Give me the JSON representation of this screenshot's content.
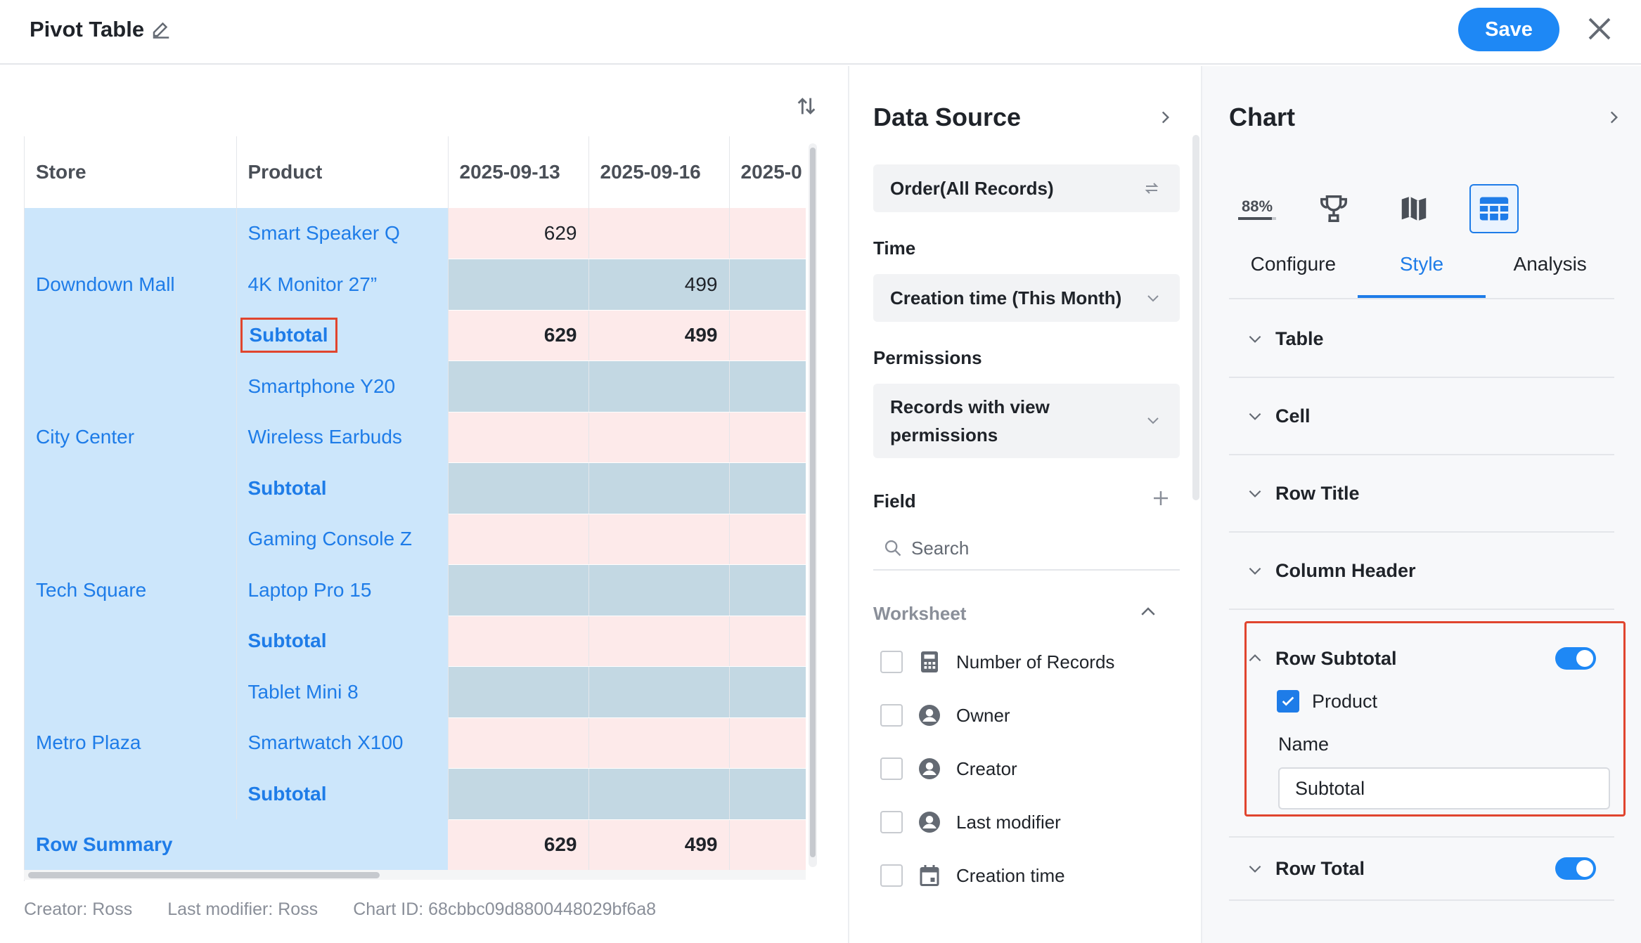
{
  "header": {
    "title": "Pivot Table",
    "save_label": "Save"
  },
  "table": {
    "columns": [
      "Store",
      "Product",
      "2025-09-13",
      "2025-09-16",
      "2025-0"
    ],
    "stores": [
      {
        "name": "Downdown Mall",
        "rows": [
          {
            "product": "Smart Speaker Q",
            "values": [
              "629",
              "",
              ""
            ],
            "subtotal": false
          },
          {
            "product": "4K Monitor 27”",
            "values": [
              "",
              "499",
              ""
            ],
            "subtotal": false
          },
          {
            "product": "Subtotal",
            "values": [
              "629",
              "499",
              ""
            ],
            "subtotal": true
          }
        ]
      },
      {
        "name": "City Center",
        "rows": [
          {
            "product": "Smartphone Y20",
            "values": [
              "",
              "",
              ""
            ],
            "subtotal": false
          },
          {
            "product": "Wireless Earbuds",
            "values": [
              "",
              "",
              ""
            ],
            "subtotal": false
          },
          {
            "product": "Subtotal",
            "values": [
              "",
              "",
              ""
            ],
            "subtotal": true
          }
        ]
      },
      {
        "name": "Tech Square",
        "rows": [
          {
            "product": "Gaming Console Z",
            "values": [
              "",
              "",
              ""
            ],
            "subtotal": false
          },
          {
            "product": "Laptop Pro 15",
            "values": [
              "",
              "",
              ""
            ],
            "subtotal": false
          },
          {
            "product": "Subtotal",
            "values": [
              "",
              "",
              ""
            ],
            "subtotal": true
          }
        ]
      },
      {
        "name": "Metro Plaza",
        "rows": [
          {
            "product": "Tablet Mini 8",
            "values": [
              "",
              "",
              ""
            ],
            "subtotal": false
          },
          {
            "product": "Smartwatch X100",
            "values": [
              "",
              "",
              ""
            ],
            "subtotal": false
          },
          {
            "product": "Subtotal",
            "values": [
              "",
              "",
              ""
            ],
            "subtotal": true
          }
        ]
      }
    ],
    "summary": {
      "label": "Row Summary",
      "values": [
        "629",
        "499",
        ""
      ]
    }
  },
  "footer": {
    "creator": "Creator: Ross",
    "modifier": "Last modifier: Ross",
    "chart_id": "Chart ID: 68cbbc09d8800448029bf6a8"
  },
  "data_source": {
    "title": "Data Source",
    "source": "Order(All Records)",
    "time_label": "Time",
    "time_value": "Creation time  (This Month)",
    "permissions_label": "Permissions",
    "permissions_value_1": "Records with view",
    "permissions_value_2": "permissions",
    "field_label": "Field",
    "search_placeholder": "Search",
    "worksheet_label": "Worksheet",
    "fields": [
      "Number of Records",
      "Owner",
      "Creator",
      "Last modifier",
      "Creation time"
    ]
  },
  "chart_panel": {
    "title": "Chart",
    "progress_label": "88%",
    "tabs": [
      "Configure",
      "Style",
      "Analysis"
    ],
    "active_tab": "Style",
    "sections": [
      "Table",
      "Cell",
      "Row Title",
      "Column Header"
    ],
    "row_subtotal": {
      "label": "Row Subtotal",
      "enabled": true,
      "checkbox_label": "Product",
      "name_label": "Name",
      "name_value": "Subtotal"
    },
    "row_total": {
      "label": "Row Total",
      "enabled": true
    }
  },
  "colors": {
    "accent": "#1e88f5",
    "highlight": "#e0452e",
    "row_blue": "#cce6fb",
    "cell_pink": "#fdeaea"
  }
}
